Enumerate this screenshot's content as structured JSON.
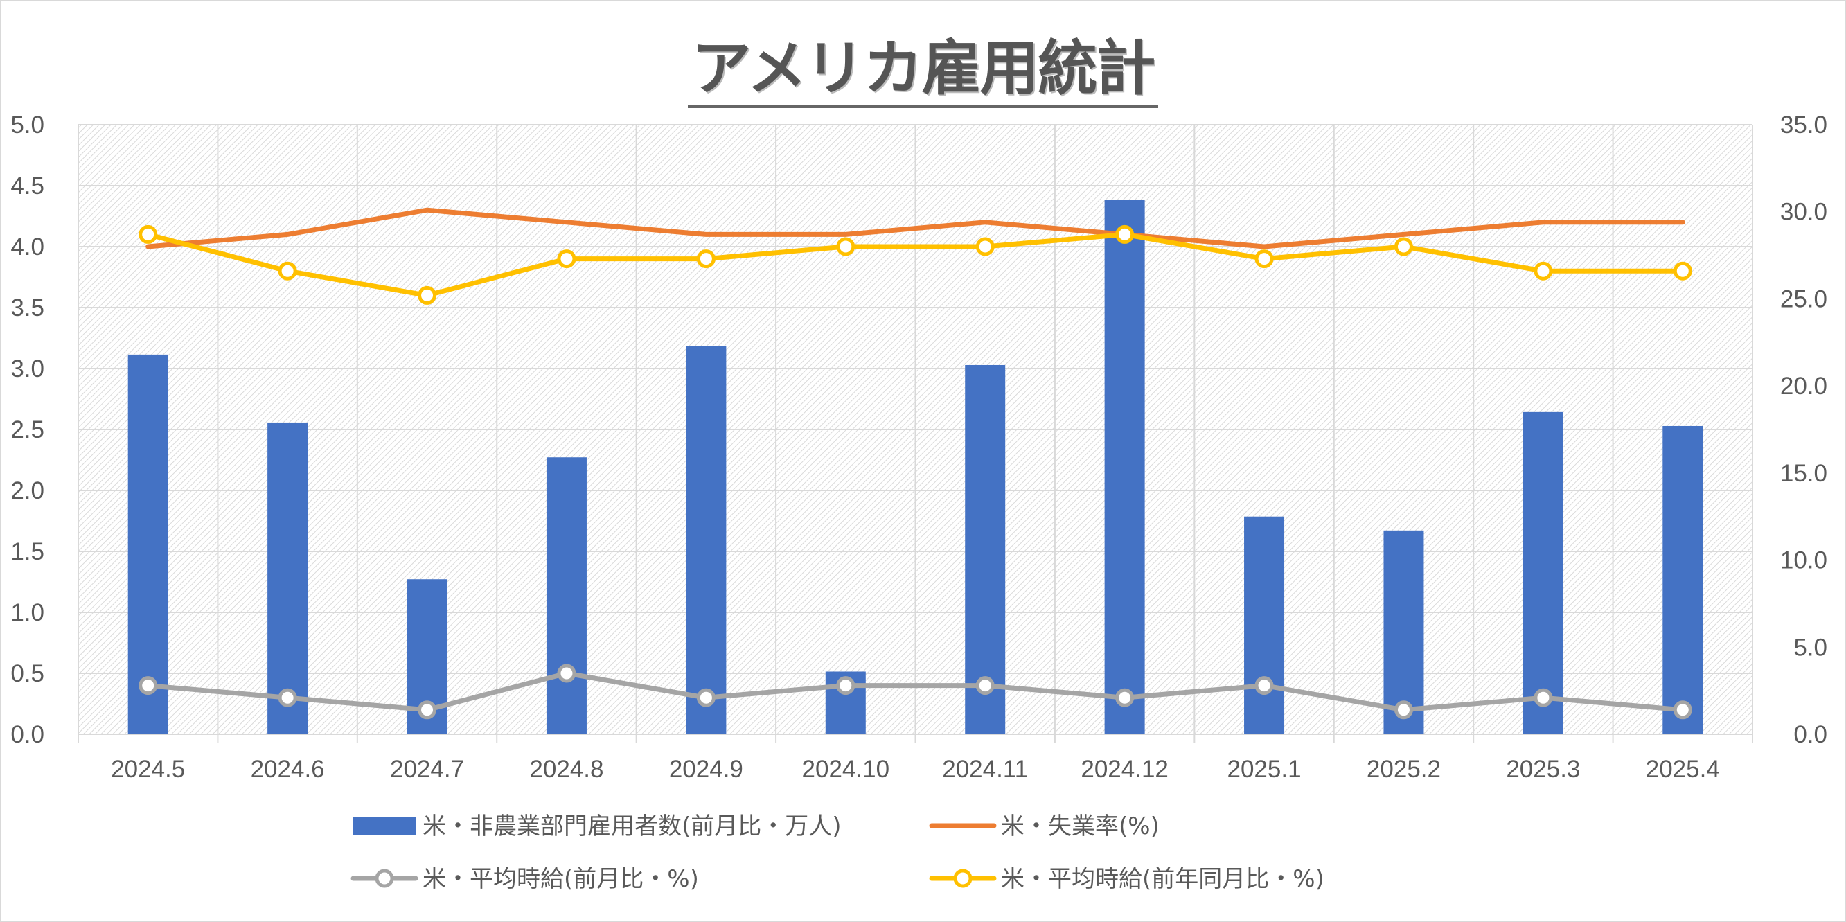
{
  "chart_data": {
    "type": "bar",
    "title": "アメリカ雇用統計",
    "categories": [
      "2024.5",
      "2024.6",
      "2024.7",
      "2024.8",
      "2024.9",
      "2024.10",
      "2024.11",
      "2024.12",
      "2025.1",
      "2025.2",
      "2025.3",
      "2025.4"
    ],
    "y_left": {
      "min": 0,
      "max": 5,
      "step": 0.5,
      "ticks": [
        "0.0",
        "0.5",
        "1.0",
        "1.5",
        "2.0",
        "2.5",
        "3.0",
        "3.5",
        "4.0",
        "4.5",
        "5.0"
      ]
    },
    "y_right": {
      "min": 0,
      "max": 35,
      "step": 5,
      "ticks": [
        "0.0",
        "5.0",
        "10.0",
        "15.0",
        "20.0",
        "25.0",
        "30.0",
        "35.0"
      ]
    },
    "grid": true,
    "legend_position": "bottom",
    "series": [
      {
        "name": "米・非農業部門雇用者数(前月比・万人)",
        "type": "bar",
        "axis": "right",
        "color": "#4472c4",
        "values": [
          21.8,
          17.9,
          8.9,
          15.9,
          22.3,
          3.6,
          21.2,
          30.7,
          12.5,
          11.7,
          18.5,
          17.7
        ]
      },
      {
        "name": "米・失業率(%)",
        "type": "line",
        "axis": "left",
        "color": "#ed7d31",
        "markers": false,
        "values": [
          4.0,
          4.1,
          4.3,
          4.2,
          4.1,
          4.1,
          4.2,
          4.1,
          4.0,
          4.1,
          4.2,
          4.2
        ]
      },
      {
        "name": "米・平均時給(前月比・%)",
        "type": "line",
        "axis": "left",
        "color": "#a5a5a5",
        "markers": true,
        "values": [
          0.4,
          0.3,
          0.2,
          0.5,
          0.3,
          0.4,
          0.4,
          0.3,
          0.4,
          0.2,
          0.3,
          0.2
        ]
      },
      {
        "name": "米・平均時給(前年同月比・%)",
        "type": "line",
        "axis": "left",
        "color": "#ffc000",
        "markers": true,
        "values": [
          4.1,
          3.8,
          3.6,
          3.9,
          3.9,
          4.0,
          4.0,
          4.1,
          3.9,
          4.0,
          3.8,
          3.8
        ]
      }
    ]
  }
}
